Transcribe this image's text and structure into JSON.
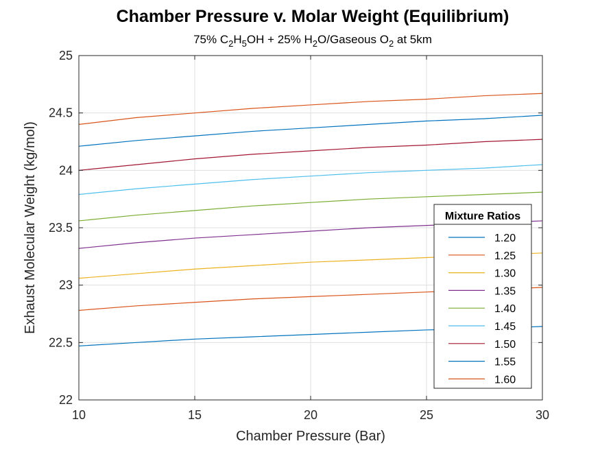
{
  "chart_data": {
    "type": "line",
    "title": "Chamber Pressure v. Molar Weight (Equilibrium)",
    "subtitle": {
      "p1": "75% C",
      "s1": "2",
      "p2": "H",
      "s2": "5",
      "p3": "OH + 25% H",
      "s3": "2",
      "p4": "O/Gaseous O",
      "s4": "2",
      "p5": " at 5km"
    },
    "xlabel": "Chamber Pressure (Bar)",
    "ylabel": "Exhaust Molecular Weight (kg/mol)",
    "xlim": [
      10,
      30
    ],
    "ylim": [
      22,
      25
    ],
    "x_ticks": [
      "10",
      "15",
      "20",
      "25",
      "30"
    ],
    "y_ticks": [
      "22",
      "22.5",
      "23",
      "23.5",
      "24",
      "24.5",
      "25"
    ],
    "grid": true,
    "legend_title": "Mixture Ratios",
    "legend_position": "bottom-right",
    "x": [
      10,
      12.5,
      15,
      17.5,
      20,
      22.5,
      25,
      27.5,
      30
    ],
    "series": [
      {
        "name": "1.20",
        "color": "#0072BD",
        "values": [
          22.47,
          22.5,
          22.53,
          22.55,
          22.57,
          22.59,
          22.61,
          22.62,
          22.64
        ]
      },
      {
        "name": "1.25",
        "color": "#D95319",
        "values": [
          22.78,
          22.82,
          22.85,
          22.88,
          22.9,
          22.92,
          22.94,
          22.96,
          22.98
        ]
      },
      {
        "name": "1.30",
        "color": "#EDB120",
        "values": [
          23.06,
          23.1,
          23.14,
          23.17,
          23.2,
          23.22,
          23.24,
          23.26,
          23.28
        ]
      },
      {
        "name": "1.35",
        "color": "#7E2F8E",
        "values": [
          23.32,
          23.37,
          23.41,
          23.44,
          23.47,
          23.5,
          23.52,
          23.54,
          23.56
        ]
      },
      {
        "name": "1.40",
        "color": "#77AC30",
        "values": [
          23.56,
          23.61,
          23.65,
          23.69,
          23.72,
          23.75,
          23.77,
          23.79,
          23.81
        ]
      },
      {
        "name": "1.45",
        "color": "#4DBEEE",
        "values": [
          23.79,
          23.84,
          23.88,
          23.92,
          23.95,
          23.98,
          24.0,
          24.02,
          24.05
        ]
      },
      {
        "name": "1.50",
        "color": "#A2142F",
        "values": [
          24.0,
          24.05,
          24.1,
          24.14,
          24.17,
          24.2,
          24.22,
          24.25,
          24.27
        ]
      },
      {
        "name": "1.55",
        "color": "#0072BD",
        "values": [
          24.21,
          24.26,
          24.3,
          24.34,
          24.37,
          24.4,
          24.43,
          24.45,
          24.48
        ]
      },
      {
        "name": "1.60",
        "color": "#D95319",
        "values": [
          24.4,
          24.46,
          24.5,
          24.54,
          24.57,
          24.6,
          24.62,
          24.65,
          24.67
        ]
      }
    ]
  }
}
